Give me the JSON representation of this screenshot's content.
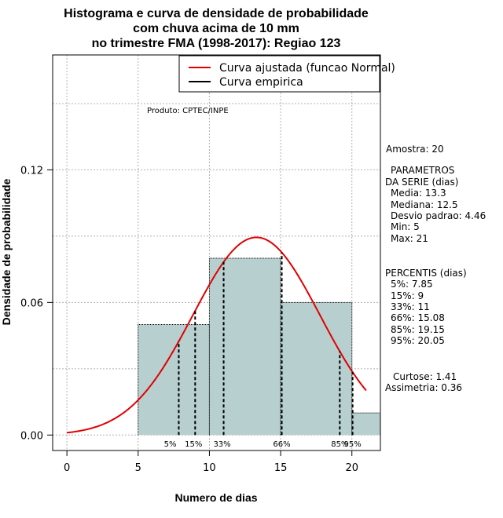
{
  "chart_data": {
    "type": "histogram",
    "title_lines": [
      "Histograma e curva de densidade de probabilidade",
      "com chuva acima de 10 mm",
      "no trimestre FMA (1998-2017): Regiao 123"
    ],
    "xlabel": "Numero de dias",
    "ylabel": "Densidade de probabilidade",
    "xlim": [
      -1,
      22
    ],
    "ylim": [
      -0.007,
      0.172
    ],
    "x_ticks": [
      0,
      5,
      10,
      15,
      20
    ],
    "y_ticks": [
      0.0,
      0.06,
      0.12
    ],
    "y_tick_labels": [
      "0.00",
      "0.06",
      "0.12"
    ],
    "grid": true,
    "bins": [
      {
        "start": 5,
        "end": 10,
        "density": 0.05
      },
      {
        "start": 10,
        "end": 15,
        "density": 0.08
      },
      {
        "start": 15,
        "end": 20,
        "density": 0.06
      },
      {
        "start": 20,
        "end": 25,
        "density": 0.01
      }
    ],
    "normal_curve": {
      "mean": 13.3,
      "sd": 4.46,
      "x_from": 0,
      "x_to": 21
    },
    "percentile_lines": [
      {
        "label": "5%",
        "x": 7.85
      },
      {
        "label": "15%",
        "x": 9
      },
      {
        "label": "33%",
        "x": 11
      },
      {
        "label": "66%",
        "x": 15.08
      },
      {
        "label": "85%",
        "x": 19.15
      },
      {
        "label": "95%",
        "x": 20.05
      }
    ],
    "legend": [
      {
        "label": "Curva ajustada (funcao Normal)",
        "color": "#e00000"
      },
      {
        "label": "Curva empirica",
        "color": "#000000"
      }
    ],
    "annotation": "Produto: CPTEC/INPE",
    "colors": {
      "bar_fill": "#b8cfcf",
      "curve": "#e00000",
      "grid": "#b0b0b0"
    }
  },
  "stats_panel": {
    "sample": "Amostra: 20",
    "params_header_1": "PARAMETROS",
    "params_header_2": "DA SERIE (dias)",
    "media": "Media: 13.3",
    "mediana": "Mediana: 12.5",
    "desvio": "Desvio padrao: 4.46",
    "min": "Min: 5",
    "max": "Max: 21",
    "percentis_header": "PERCENTIS (dias)",
    "p5": "5%: 7.85",
    "p15": "15%: 9",
    "p33": "33%: 11",
    "p66": "66%: 15.08",
    "p85": "85%: 19.15",
    "p95": "95%: 20.05",
    "curtose": "Curtose: 1.41",
    "assimetria": "Assimetria: 0.36"
  }
}
